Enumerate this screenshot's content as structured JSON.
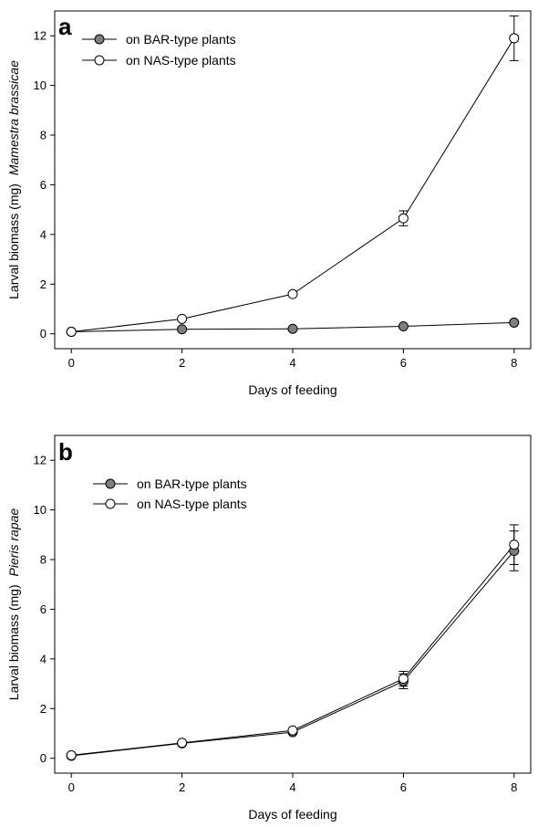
{
  "chart_data": [
    {
      "type": "line",
      "panel_label": "a",
      "xlabel": "Days of feeding",
      "ylabel_prefix": "Larval biomass (mg)",
      "ylabel_species": "Mamestra brassicae",
      "x": [
        0,
        2,
        4,
        6,
        8
      ],
      "xticks": [
        0,
        2,
        4,
        6,
        8
      ],
      "yticks": [
        0,
        2,
        4,
        6,
        8,
        10,
        12
      ],
      "xlim": [
        -0.3,
        8.3
      ],
      "ylim": [
        -0.6,
        13.0
      ],
      "legend_position": "top-left",
      "series": [
        {
          "name": "on BAR-type plants",
          "marker": "filled-circle",
          "fill": "#7f7f7f",
          "values": [
            0.08,
            0.18,
            0.2,
            0.3,
            0.45
          ],
          "errors": [
            0.03,
            0.04,
            0.04,
            0.06,
            0.17
          ]
        },
        {
          "name": "on NAS-type plants",
          "marker": "open-circle",
          "fill": "#ffffff",
          "values": [
            0.08,
            0.6,
            1.6,
            4.65,
            11.9
          ],
          "errors": [
            0.03,
            0.07,
            0.1,
            0.3,
            0.9
          ]
        }
      ]
    },
    {
      "type": "line",
      "panel_label": "b",
      "xlabel": "Days of feeding",
      "ylabel_prefix": "Larval biomass (mg)",
      "ylabel_species": "Pieris rapae",
      "x": [
        0,
        2,
        4,
        6,
        8
      ],
      "xticks": [
        0,
        2,
        4,
        6,
        8
      ],
      "yticks": [
        0,
        2,
        4,
        6,
        8,
        10,
        12
      ],
      "xlim": [
        -0.3,
        8.3
      ],
      "ylim": [
        -0.6,
        13.0
      ],
      "legend_position": "top-left",
      "series": [
        {
          "name": "on BAR-type plants",
          "marker": "filled-circle",
          "fill": "#7f7f7f",
          "values": [
            0.1,
            0.6,
            1.05,
            3.1,
            8.35
          ],
          "errors": [
            0.03,
            0.05,
            0.08,
            0.3,
            0.8
          ]
        },
        {
          "name": "on NAS-type plants",
          "marker": "open-circle",
          "fill": "#ffffff",
          "values": [
            0.12,
            0.62,
            1.12,
            3.2,
            8.6
          ],
          "errors": [
            0.03,
            0.05,
            0.08,
            0.3,
            0.8
          ]
        }
      ]
    }
  ]
}
